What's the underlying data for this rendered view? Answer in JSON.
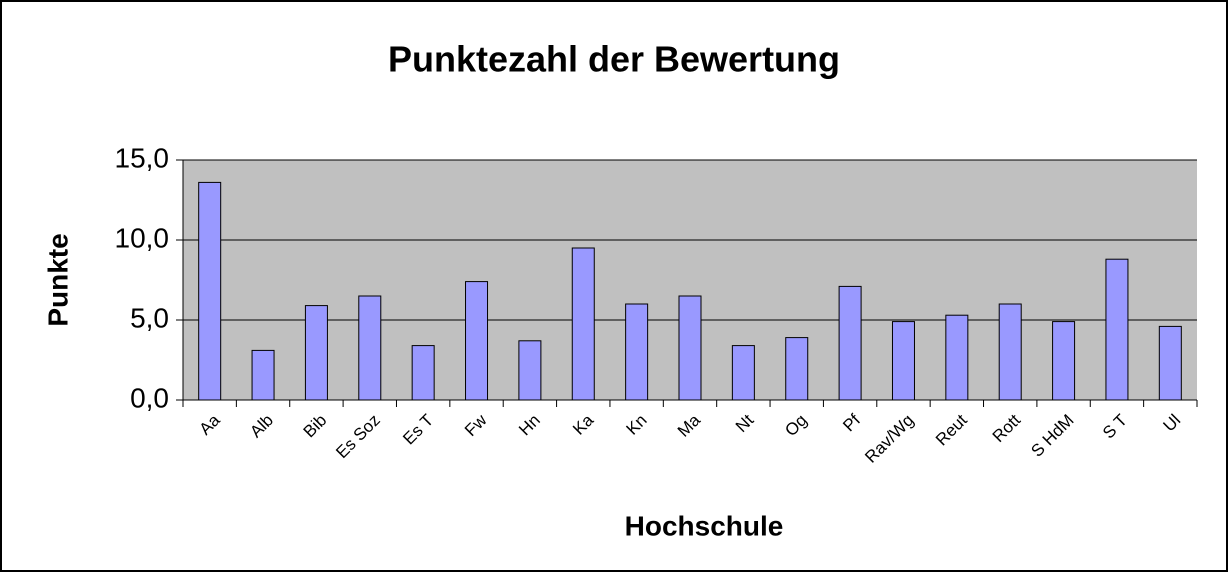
{
  "chart_data": {
    "type": "bar",
    "title": "Punktezahl der Bewertung",
    "x_label": "Hochschule",
    "y_label": "Punkte",
    "categories": [
      "Aa",
      "Alb",
      "Bib",
      "Es Soz",
      "Es T",
      "Fw",
      "Hn",
      "Ka",
      "Kn",
      "Ma",
      "Nt",
      "Og",
      "Pf",
      "Rav/Wg",
      "Reut",
      "Rott",
      "S HdM",
      "S T",
      "Ul"
    ],
    "values": [
      13.6,
      3.1,
      5.9,
      6.5,
      3.4,
      7.4,
      3.7,
      9.5,
      6.0,
      6.5,
      3.4,
      3.9,
      7.1,
      4.9,
      5.3,
      6.0,
      4.9,
      8.8,
      4.6
    ],
    "color": "#9999ff",
    "ylim": [
      0,
      15
    ],
    "yticks": [
      {
        "value": 0,
        "label": "0,0"
      },
      {
        "value": 5,
        "label": "5,0"
      },
      {
        "value": 10,
        "label": "10,0"
      },
      {
        "value": 15,
        "label": "15,0"
      }
    ],
    "grid": true
  }
}
